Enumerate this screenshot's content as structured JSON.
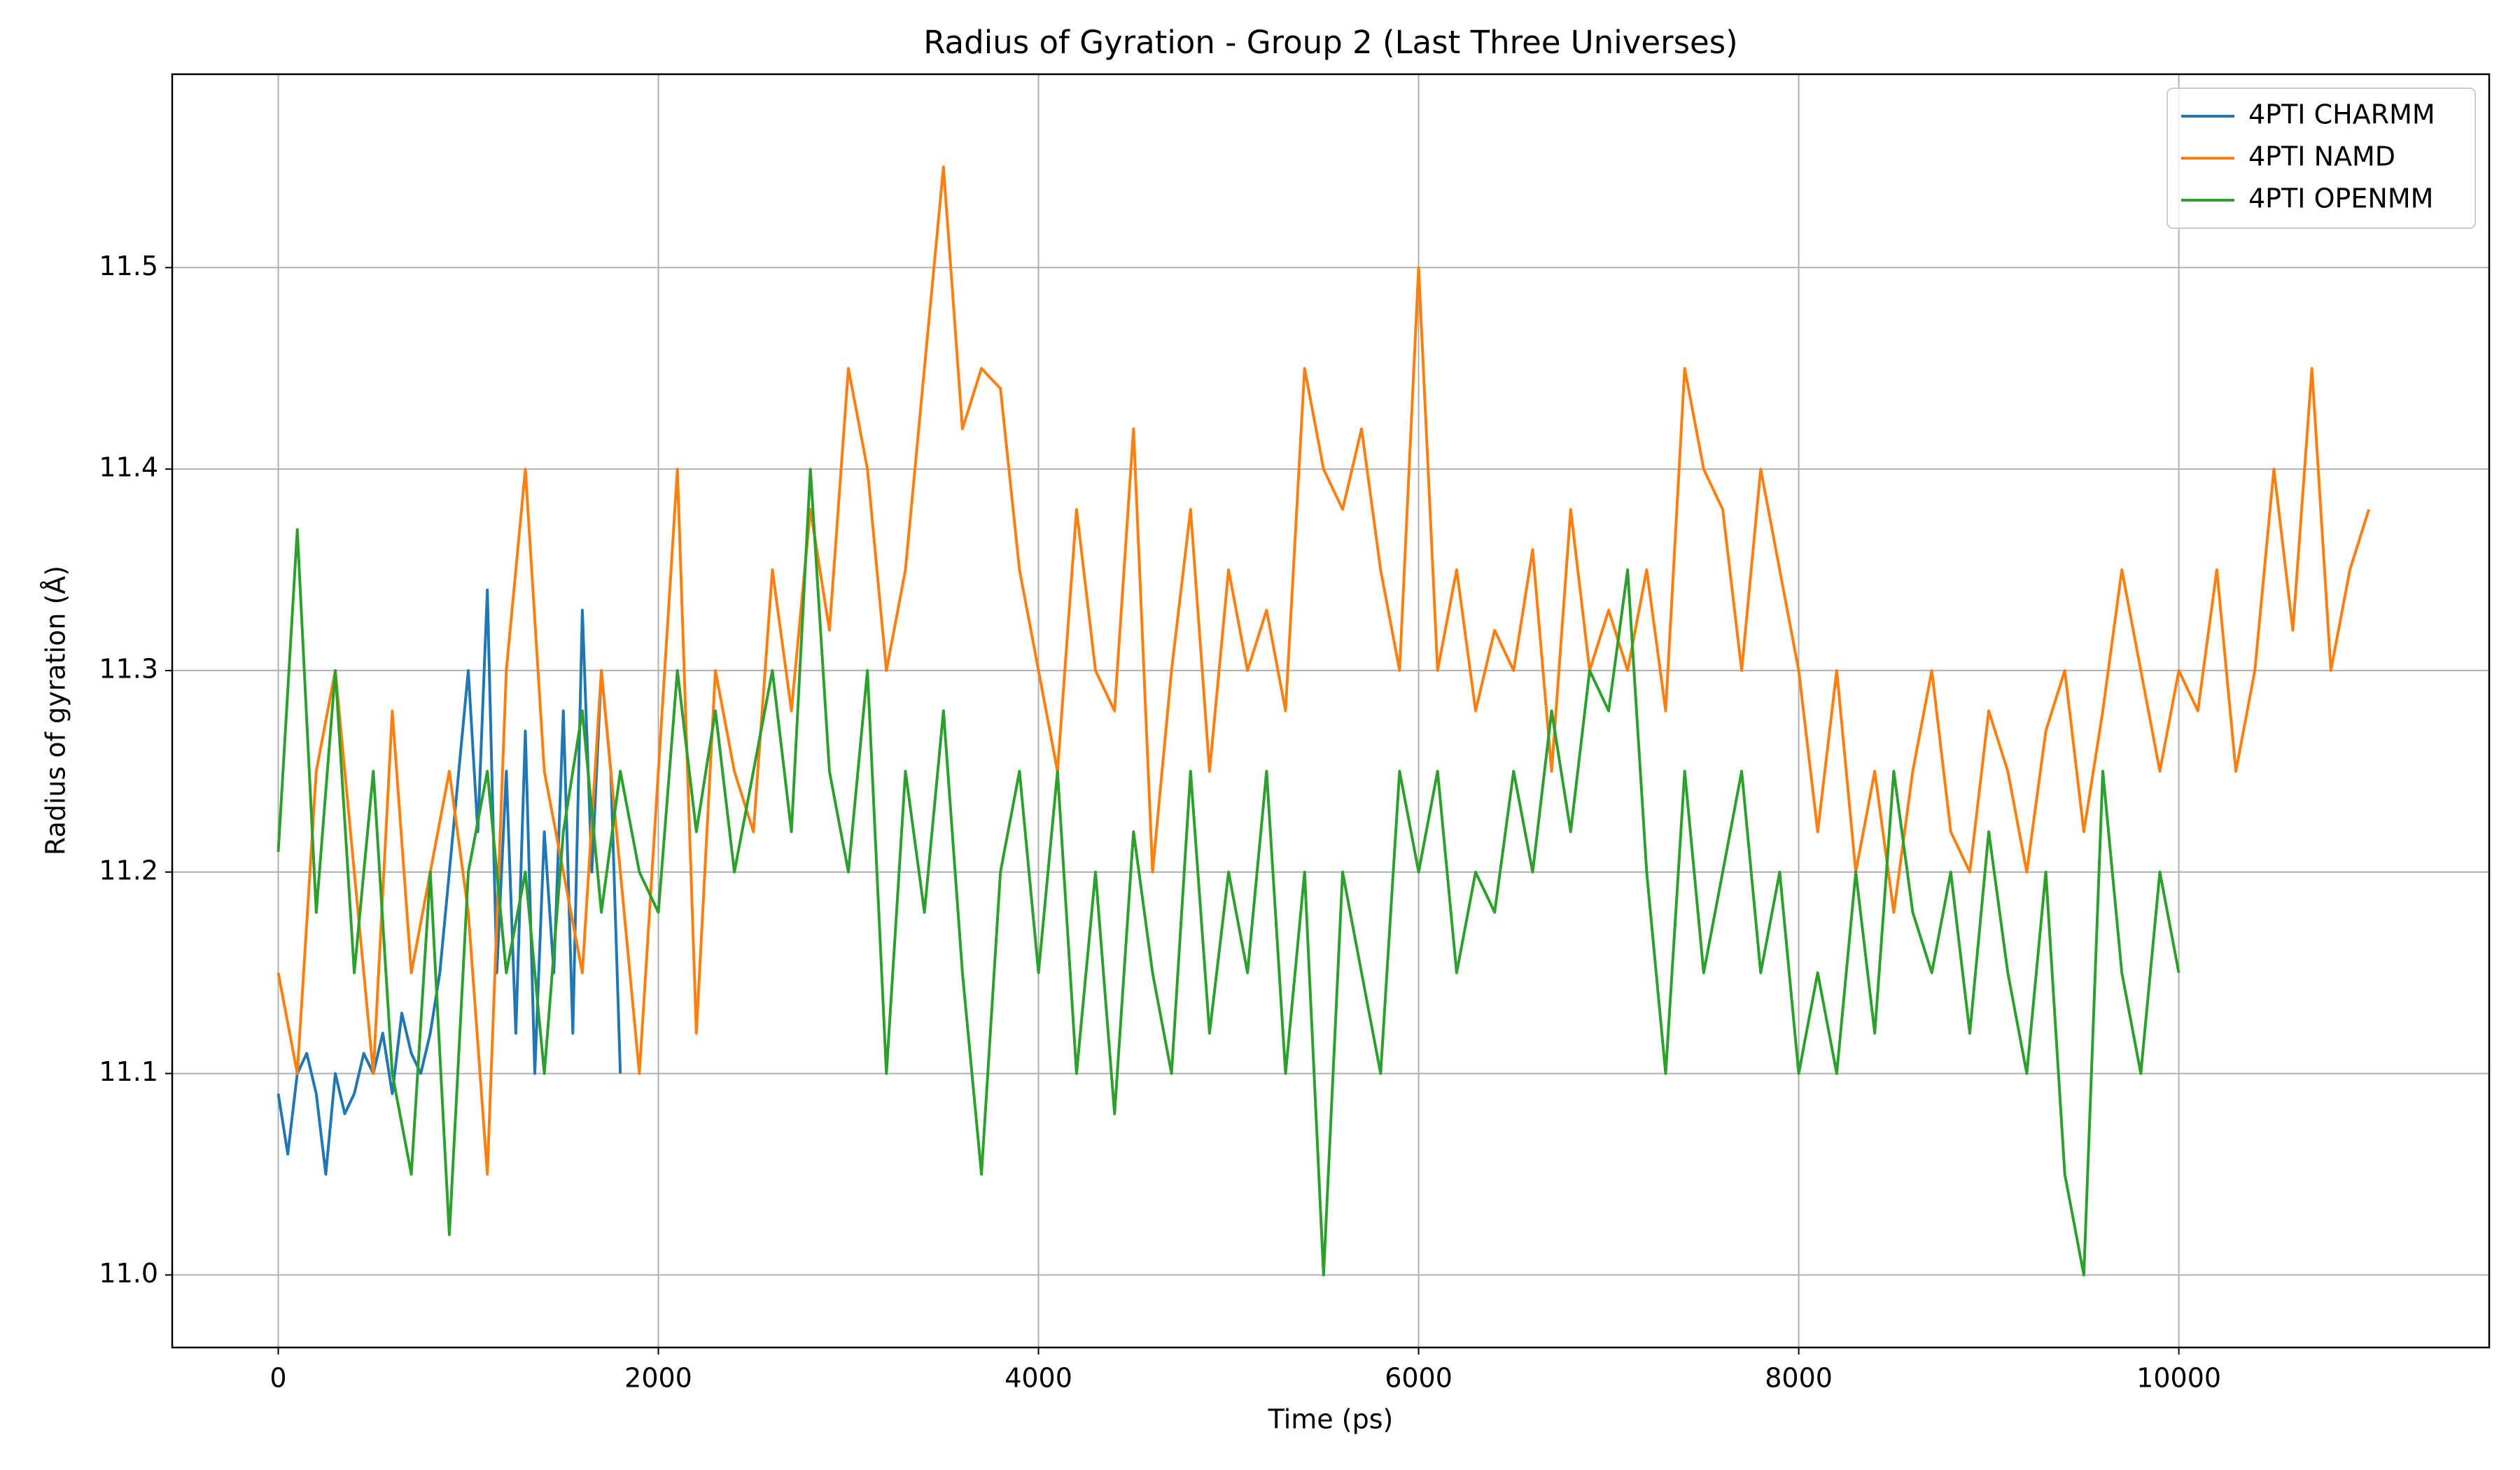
{
  "chart_data": {
    "type": "line",
    "title": "Radius of Gyration - Group 2 (Last Three Universes)",
    "x_label": "Time (ps)",
    "y_label": "Radius of gyration (Å)",
    "xlim": [
      -558,
      11633
    ],
    "ylim": [
      10.964,
      11.596
    ],
    "xticks": [
      0,
      2000,
      4000,
      6000,
      8000,
      10000
    ],
    "yticks": [
      {
        "value": 11,
        "label": "11.0"
      },
      11.1,
      11.2,
      11.3,
      11.4,
      11.5
    ],
    "grid": true,
    "legend": "upper right",
    "series": [
      {
        "name": "4PTI CHARMM",
        "color": "#1f77b4",
        "x": [
          0,
          50,
          100,
          150,
          200,
          250,
          300,
          350,
          400,
          450,
          500,
          550,
          600,
          650,
          700,
          750,
          800,
          850,
          900,
          950,
          1000,
          1050,
          1100,
          1150,
          1200,
          1250,
          1300,
          1350,
          1400,
          1450,
          1500,
          1550,
          1600,
          1650,
          1700,
          1750,
          1800
        ],
        "values": [
          11.09,
          11.06,
          11.1,
          11.11,
          11.09,
          11.05,
          11.1,
          11.08,
          11.09,
          11.11,
          11.1,
          11.12,
          11.09,
          11.13,
          11.11,
          11.1,
          11.12,
          11.15,
          11.2,
          11.25,
          11.3,
          11.22,
          11.34,
          11.15,
          11.25,
          11.12,
          11.27,
          11.1,
          11.22,
          11.15,
          11.28,
          11.12,
          11.33,
          11.2,
          11.3,
          11.25,
          11.1
        ]
      },
      {
        "name": "4PTI NAMD",
        "color": "#ff7f0e",
        "x": [
          0,
          100,
          200,
          300,
          400,
          500,
          600,
          700,
          800,
          900,
          1000,
          1100,
          1200,
          1300,
          1400,
          1500,
          1600,
          1700,
          1800,
          1900,
          2000,
          2100,
          2200,
          2300,
          2400,
          2500,
          2600,
          2700,
          2800,
          2900,
          3000,
          3100,
          3200,
          3300,
          3400,
          3500,
          3600,
          3700,
          3800,
          3900,
          4000,
          4100,
          4200,
          4300,
          4400,
          4500,
          4600,
          4700,
          4800,
          4900,
          5000,
          5100,
          5200,
          5300,
          5400,
          5500,
          5600,
          5700,
          5800,
          5900,
          6000,
          6100,
          6200,
          6300,
          6400,
          6500,
          6600,
          6700,
          6800,
          6900,
          7000,
          7100,
          7200,
          7300,
          7400,
          7500,
          7600,
          7700,
          7800,
          7900,
          8000,
          8100,
          8200,
          8300,
          8400,
          8500,
          8600,
          8700,
          8800,
          8900,
          9000,
          9100,
          9200,
          9300,
          9400,
          9500,
          9600,
          9700,
          9800,
          9900,
          10000,
          10100,
          10200,
          10300,
          10400,
          10500,
          10600,
          10700,
          10800,
          10900,
          11000
        ],
        "values": [
          11.15,
          11.1,
          11.25,
          11.3,
          11.2,
          11.1,
          11.28,
          11.15,
          11.2,
          11.25,
          11.18,
          11.05,
          11.3,
          11.4,
          11.25,
          11.2,
          11.15,
          11.3,
          11.2,
          11.1,
          11.25,
          11.4,
          11.12,
          11.3,
          11.25,
          11.22,
          11.35,
          11.28,
          11.38,
          11.32,
          11.45,
          11.4,
          11.3,
          11.35,
          11.45,
          11.55,
          11.42,
          11.45,
          11.44,
          11.35,
          11.3,
          11.25,
          11.38,
          11.3,
          11.28,
          11.42,
          11.2,
          11.3,
          11.38,
          11.25,
          11.35,
          11.3,
          11.33,
          11.28,
          11.45,
          11.4,
          11.38,
          11.42,
          11.35,
          11.3,
          11.5,
          11.3,
          11.35,
          11.28,
          11.32,
          11.3,
          11.36,
          11.25,
          11.38,
          11.3,
          11.33,
          11.3,
          11.35,
          11.28,
          11.45,
          11.4,
          11.38,
          11.3,
          11.4,
          11.35,
          11.3,
          11.22,
          11.3,
          11.2,
          11.25,
          11.18,
          11.25,
          11.3,
          11.22,
          11.2,
          11.28,
          11.25,
          11.2,
          11.27,
          11.3,
          11.22,
          11.28,
          11.35,
          11.3,
          11.25,
          11.3,
          11.28,
          11.35,
          11.25,
          11.3,
          11.4,
          11.32,
          11.45,
          11.3,
          11.35,
          11.38
        ]
      },
      {
        "name": "4PTI OPENMM",
        "color": "#2ca02c",
        "x": [
          0,
          100,
          200,
          300,
          400,
          500,
          600,
          700,
          800,
          900,
          1000,
          1100,
          1200,
          1300,
          1400,
          1500,
          1600,
          1700,
          1800,
          1900,
          2000,
          2100,
          2200,
          2300,
          2400,
          2500,
          2600,
          2700,
          2800,
          2900,
          3000,
          3100,
          3200,
          3300,
          3400,
          3500,
          3600,
          3700,
          3800,
          3900,
          4000,
          4100,
          4200,
          4300,
          4400,
          4500,
          4600,
          4700,
          4800,
          4900,
          5000,
          5100,
          5200,
          5300,
          5400,
          5500,
          5600,
          5700,
          5800,
          5900,
          6000,
          6100,
          6200,
          6300,
          6400,
          6500,
          6600,
          6700,
          6800,
          6900,
          7000,
          7100,
          7200,
          7300,
          7400,
          7500,
          7600,
          7700,
          7800,
          7900,
          8000,
          8100,
          8200,
          8300,
          8400,
          8500,
          8600,
          8700,
          8800,
          8900,
          9000,
          9100,
          9200,
          9300,
          9400,
          9500,
          9600,
          9700,
          9800,
          9900,
          10000
        ],
        "values": [
          11.21,
          11.37,
          11.18,
          11.3,
          11.15,
          11.25,
          11.1,
          11.05,
          11.2,
          11.02,
          11.2,
          11.25,
          11.15,
          11.2,
          11.1,
          11.22,
          11.28,
          11.18,
          11.25,
          11.2,
          11.18,
          11.3,
          11.22,
          11.28,
          11.2,
          11.25,
          11.3,
          11.22,
          11.4,
          11.25,
          11.2,
          11.3,
          11.1,
          11.25,
          11.18,
          11.28,
          11.15,
          11.05,
          11.2,
          11.25,
          11.15,
          11.25,
          11.1,
          11.2,
          11.08,
          11.22,
          11.15,
          11.1,
          11.25,
          11.12,
          11.2,
          11.15,
          11.25,
          11.1,
          11.2,
          11.0,
          11.2,
          11.15,
          11.1,
          11.25,
          11.2,
          11.25,
          11.15,
          11.2,
          11.18,
          11.25,
          11.2,
          11.28,
          11.22,
          11.3,
          11.28,
          11.35,
          11.2,
          11.1,
          11.25,
          11.15,
          11.2,
          11.25,
          11.15,
          11.2,
          11.1,
          11.15,
          11.1,
          11.2,
          11.12,
          11.25,
          11.18,
          11.15,
          11.2,
          11.12,
          11.22,
          11.15,
          11.1,
          11.2,
          11.05,
          11.0,
          11.25,
          11.15,
          11.1,
          11.2,
          11.15
        ]
      }
    ]
  }
}
